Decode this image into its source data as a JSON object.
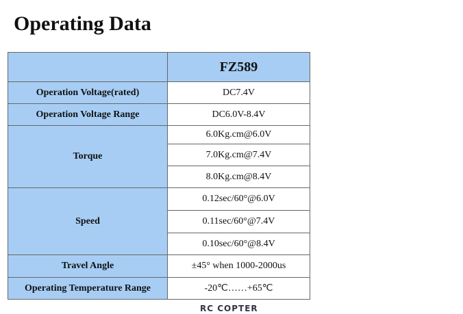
{
  "title": "Operating Data",
  "table": {
    "header": "FZ589",
    "rows": [
      {
        "label": "Operation Voltage(rated)",
        "values": [
          "DC7.4V"
        ]
      },
      {
        "label": "Operation Voltage Range",
        "values": [
          "DC6.0V-8.4V"
        ]
      },
      {
        "label": "Torque",
        "values": [
          "6.0Kg.cm@6.0V",
          "7.0Kg.cm@7.4V",
          "8.0Kg.cm@8.4V"
        ]
      },
      {
        "label": "Speed",
        "values": [
          "0.12sec/60°@6.0V",
          "0.11sec/60°@7.4V",
          "0.10sec/60°@8.4V"
        ]
      },
      {
        "label": "Travel Angle",
        "values": [
          "±45° when 1000-2000us"
        ]
      },
      {
        "label": "Operating Temperature Range",
        "values": [
          "-20℃……+65℃"
        ]
      }
    ]
  },
  "logo": "RC COPTER"
}
